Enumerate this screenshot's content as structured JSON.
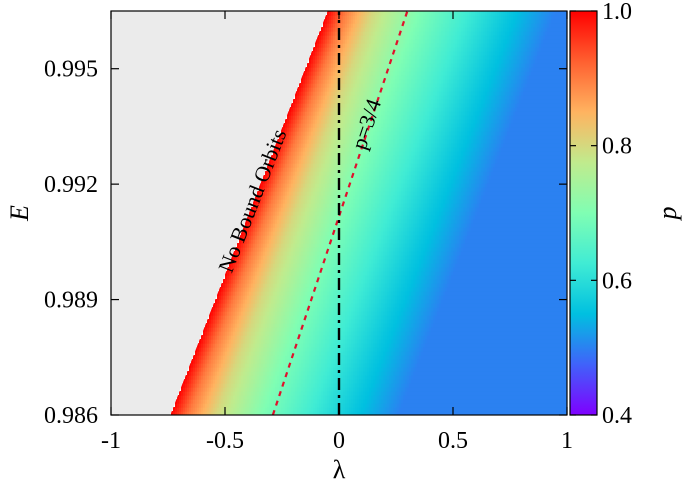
{
  "chart_data": {
    "type": "heatmap",
    "title": "",
    "xlabel": "λ",
    "ylabel": "E",
    "colorbar_label": "p",
    "xlim": [
      -1,
      1
    ],
    "ylim": [
      0.986,
      0.9965
    ],
    "x_ticks": [
      -1,
      -0.5,
      0,
      0.5,
      1
    ],
    "x_tick_labels": [
      "-1",
      "-0.5",
      "0",
      "0.5",
      "1"
    ],
    "y_ticks": [
      0.986,
      0.989,
      0.992,
      0.995
    ],
    "y_tick_labels": [
      "0.986",
      "0.989",
      "0.992",
      "0.995"
    ],
    "colorbar_range": [
      0.4,
      1.0
    ],
    "colorbar_ticks": [
      0.4,
      0.6,
      0.8,
      1.0
    ],
    "colorbar_tick_labels": [
      "0.4",
      "0.6",
      "0.8",
      "1.0"
    ],
    "colormap": [
      "#7f00ff",
      "#4062fa",
      "#00c0e0",
      "#40ecd4",
      "#80feb3",
      "#c0eb8d",
      "#ffb360",
      "#ff6030",
      "#ff0000"
    ],
    "no_orbit_color": "#ebebeb",
    "no_orbit_boundary": {
      "lambda": [
        -0.74,
        -0.05
      ],
      "E": [
        0.986,
        0.9965
      ]
    },
    "p_at_lambda": {
      "lambda": [
        0.0,
        0.08,
        0.2,
        0.4,
        0.6,
        0.8,
        1.0
      ],
      "p": [
        1.0,
        0.9,
        0.8,
        0.7,
        0.63,
        0.56,
        0.5
      ]
    },
    "series": [
      {
        "style": "dashed",
        "color": "#e0102c",
        "lambda": [
          -0.29,
          0.3
        ],
        "E": [
          0.986,
          0.9965
        ]
      },
      {
        "style": "dashdot",
        "color": "#000000",
        "lambda": [
          0.0,
          0.0
        ],
        "E": [
          0.986,
          0.9965
        ]
      }
    ],
    "annotations": [
      {
        "text": "No Bound Orbits",
        "lambda": -0.35,
        "E": 0.9915
      },
      {
        "text": "p=3/4",
        "lambda": 0.15,
        "E": 0.9935
      }
    ]
  }
}
